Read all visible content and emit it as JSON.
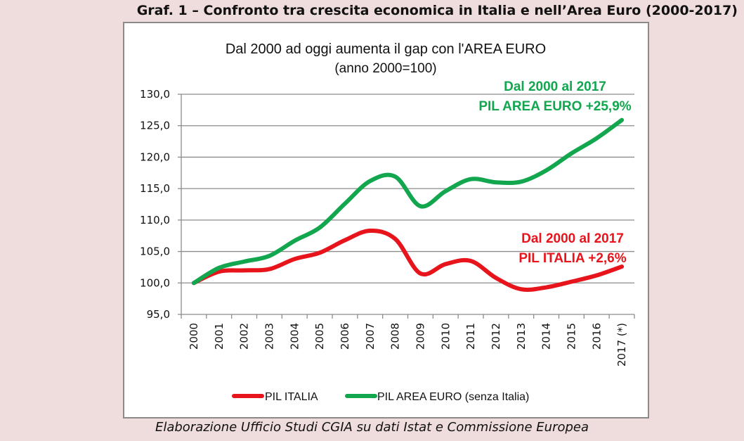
{
  "page": {
    "title": "Graf. 1 – Confronto tra crescita economica in Italia e nell’Area Euro (2000-2017)",
    "footer": "Elaborazione Ufficio Studi CGIA su dati Istat e Commissione Europea"
  },
  "chart_data": {
    "type": "line",
    "title": "Dal 2000 ad oggi aumenta il gap con l'AREA EURO",
    "subtitle": "(anno 2000=100)",
    "xlabel": "",
    "ylabel": "",
    "ylim": [
      95,
      130
    ],
    "ytick_step": 5,
    "yticks": [
      "95,0",
      "100,0",
      "105,0",
      "110,0",
      "115,0",
      "120,0",
      "125,0",
      "130,0"
    ],
    "grid": true,
    "legend": "bottom",
    "categories": [
      "2000",
      "2001",
      "2002",
      "2003",
      "2004",
      "2005",
      "2006",
      "2007",
      "2008",
      "2009",
      "2010",
      "2011",
      "2012",
      "2013",
      "2014",
      "2015",
      "2016",
      "2017 (*)"
    ],
    "series": [
      {
        "name": "PIL ITALIA",
        "color": "#e8141b",
        "values": [
          100,
          101.8,
          102.0,
          102.2,
          103.8,
          104.8,
          106.8,
          108.3,
          107.0,
          101.5,
          103.0,
          103.5,
          100.8,
          99.0,
          99.3,
          100.2,
          101.2,
          102.6
        ]
      },
      {
        "name": "PIL AREA EURO (senza Italia)",
        "color": "#12a64f",
        "values": [
          100,
          102.4,
          103.4,
          104.3,
          106.7,
          108.8,
          112.6,
          116.2,
          116.9,
          112.2,
          114.6,
          116.5,
          116.0,
          116.1,
          117.9,
          120.6,
          123.0,
          125.9
        ]
      }
    ],
    "annotations": [
      {
        "series": "PIL AREA EURO (senza Italia)",
        "color": "#12a64f",
        "lines": [
          "Dal 2000 al 2017",
          "PIL AREA EURO +25,9%"
        ]
      },
      {
        "series": "PIL ITALIA",
        "color": "#e8141b",
        "lines": [
          "Dal 2000 al 2017",
          "PIL ITALIA +2,6%"
        ]
      }
    ]
  }
}
